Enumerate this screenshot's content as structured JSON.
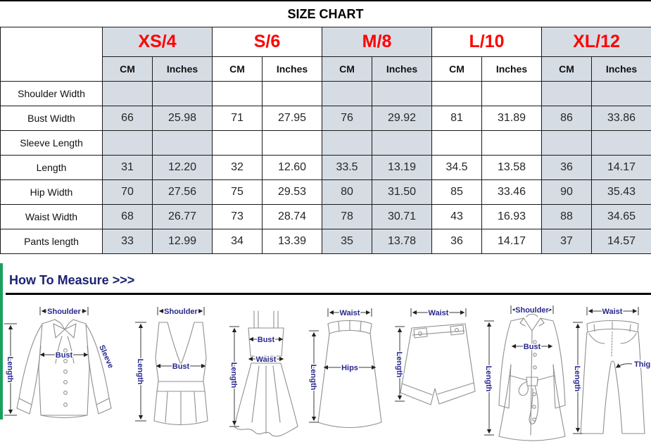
{
  "page": {
    "title": "SIZE CHART"
  },
  "size_chart": {
    "sizes": [
      "XS/4",
      "S/6",
      "M/8",
      "L/10",
      "XL/12"
    ],
    "unit_headers": [
      "CM",
      "Inches"
    ],
    "rows": [
      {
        "label": "Shoulder Width",
        "values": [
          "",
          "",
          "",
          "",
          "",
          "",
          "",
          "",
          "",
          ""
        ]
      },
      {
        "label": "Bust Width",
        "values": [
          "66",
          "25.98",
          "71",
          "27.95",
          "76",
          "29.92",
          "81",
          "31.89",
          "86",
          "33.86"
        ]
      },
      {
        "label": "Sleeve Length",
        "values": [
          "",
          "",
          "",
          "",
          "",
          "",
          "",
          "",
          "",
          ""
        ]
      },
      {
        "label": "Length",
        "values": [
          "31",
          "12.20",
          "32",
          "12.60",
          "33.5",
          "13.19",
          "34.5",
          "13.58",
          "36",
          "14.17"
        ]
      },
      {
        "label": "Hip Width",
        "values": [
          "70",
          "27.56",
          "75",
          "29.53",
          "80",
          "31.50",
          "85",
          "33.46",
          "90",
          "35.43"
        ]
      },
      {
        "label": "Waist Width",
        "values": [
          "68",
          "26.77",
          "73",
          "28.74",
          "78",
          "30.71",
          "43",
          "16.93",
          "88",
          "34.65"
        ]
      },
      {
        "label": "Pants length",
        "values": [
          "33",
          "12.99",
          "34",
          "13.39",
          "35",
          "13.78",
          "36",
          "14.17",
          "37",
          "14.57"
        ]
      }
    ]
  },
  "measure": {
    "heading": "How To Measure >>>",
    "garments": [
      {
        "name": "blouse",
        "labels": {
          "shoulder": "Shoulder",
          "bust": "Bust",
          "sleeve": "Sleeve",
          "length": "Length"
        }
      },
      {
        "name": "tank-top",
        "labels": {
          "shoulder": "Shoulder",
          "bust": "Bust",
          "length": "Length"
        }
      },
      {
        "name": "dress",
        "labels": {
          "bust": "Bust",
          "waist": "Waist",
          "length": "Length"
        }
      },
      {
        "name": "skirt",
        "labels": {
          "waist": "Waist",
          "hips": "Hips",
          "length": "Length"
        }
      },
      {
        "name": "shorts",
        "labels": {
          "waist": "Waist",
          "length": "Length"
        }
      },
      {
        "name": "coat",
        "labels": {
          "shoulder": "Shoulder",
          "bust": "Bust",
          "length": "Length"
        }
      },
      {
        "name": "pants",
        "labels": {
          "waist": "Waist",
          "thigh": "Thigh",
          "length": "Length"
        }
      }
    ]
  },
  "colors": {
    "size_label_red": "#fe0000",
    "header_cell_grey": "#d6dce4",
    "diagram_label_navy": "#28288e",
    "heading_navy": "#1b2173",
    "accent_green": "#1aa05c",
    "divider_black": "#000000"
  }
}
